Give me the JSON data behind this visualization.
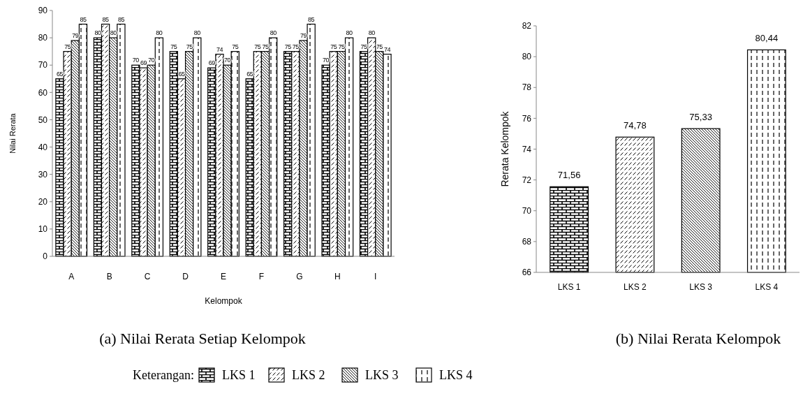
{
  "chart_data": [
    {
      "type": "bar",
      "title": "(a) Nilai Rerata Setiap Kelompok",
      "xlabel": "Kelompok",
      "ylabel": "Nilai Rerata",
      "categories": [
        "A",
        "B",
        "C",
        "D",
        "E",
        "F",
        "G",
        "H",
        "I"
      ],
      "ylim": [
        0,
        90
      ],
      "yticks": [
        0,
        10,
        20,
        30,
        40,
        50,
        60,
        70,
        80,
        90
      ],
      "data_labels": true,
      "legend": "bottom",
      "legend_title": "Keterangan:",
      "series": [
        {
          "name": "LKS 1",
          "color": "#000000",
          "values": [
            65,
            80,
            70,
            75,
            69,
            65,
            75,
            70,
            75
          ]
        },
        {
          "name": "LKS 2",
          "color": "#000000",
          "values": [
            75,
            85,
            69,
            65,
            74,
            75,
            75,
            75,
            80
          ]
        },
        {
          "name": "LKS 3",
          "color": "#000000",
          "values": [
            79,
            80,
            70,
            75,
            70,
            75,
            79,
            75,
            75
          ]
        },
        {
          "name": "LKS 4",
          "color": "#000000",
          "values": [
            85,
            85,
            80,
            80,
            75,
            80,
            85,
            80,
            74
          ]
        }
      ]
    },
    {
      "type": "bar",
      "title": "(b) Nilai Rerata Kelompok",
      "ylabel": "Rerata Kelompok",
      "categories": [
        "LKS 1",
        "LKS 2",
        "LKS 3",
        "LKS 4"
      ],
      "values": [
        71.56,
        74.78,
        75.33,
        80.44
      ],
      "colors": [
        "#000000",
        "#000000",
        "#000000",
        "#000000"
      ],
      "value_labels": [
        "71,56",
        "74,78",
        "75,33",
        "80,44"
      ],
      "ylim": [
        66,
        82
      ],
      "yticks": [
        66,
        68,
        70,
        72,
        74,
        76,
        78,
        80,
        82
      ]
    }
  ]
}
